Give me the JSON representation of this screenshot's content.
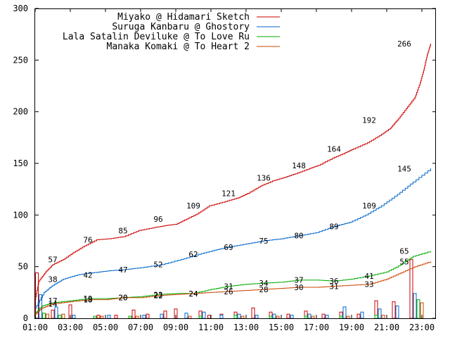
{
  "chart_data": {
    "type": "line",
    "title": "",
    "xlabel": "",
    "ylabel": "",
    "ylim": [
      0,
      300
    ],
    "y_ticks": [
      "0",
      "50",
      "100",
      "150",
      "200",
      "250",
      "300"
    ],
    "x_ticks": [
      "01:00",
      "03:00",
      "05:00",
      "07:00",
      "09:00",
      "11:00",
      "13:00",
      "15:00",
      "17:00",
      "19:00",
      "21:00",
      "23:00"
    ],
    "grid": false,
    "legend_position": "top-right",
    "series": [
      {
        "name": "Miyako @ Hidamari Sketch",
        "color": "#cc0000",
        "points": [
          [
            1.0,
            18
          ],
          [
            1.2,
            36
          ],
          [
            1.6,
            45
          ],
          [
            2.0,
            52
          ],
          [
            2.6,
            57
          ],
          [
            3.2,
            64
          ],
          [
            3.8,
            70
          ],
          [
            4.5,
            76
          ],
          [
            5.2,
            77
          ],
          [
            6.0,
            79
          ],
          [
            6.9,
            85
          ],
          [
            7.8,
            88
          ],
          [
            8.5,
            90
          ],
          [
            9.0,
            91
          ],
          [
            9.6,
            96
          ],
          [
            10.2,
            101
          ],
          [
            10.9,
            109
          ],
          [
            11.8,
            113
          ],
          [
            12.6,
            117
          ],
          [
            13.1,
            121
          ],
          [
            13.8,
            128
          ],
          [
            14.5,
            133
          ],
          [
            15.1,
            136
          ],
          [
            15.8,
            140
          ],
          [
            16.6,
            145
          ],
          [
            17.1,
            148
          ],
          [
            17.9,
            155
          ],
          [
            18.6,
            160
          ],
          [
            19.1,
            164
          ],
          [
            19.9,
            170
          ],
          [
            20.6,
            177
          ],
          [
            21.2,
            184
          ],
          [
            21.6,
            192
          ],
          [
            22.1,
            203
          ],
          [
            22.6,
            214
          ],
          [
            22.9,
            228
          ],
          [
            23.1,
            240
          ],
          [
            23.3,
            255
          ],
          [
            23.5,
            266
          ]
        ],
        "labels": [
          [
            2.0,
            57
          ],
          [
            4.0,
            76
          ],
          [
            6.0,
            85
          ],
          [
            8.0,
            96
          ],
          [
            10.0,
            109
          ],
          [
            12.0,
            121
          ],
          [
            14.0,
            136
          ],
          [
            16.0,
            148
          ],
          [
            18.0,
            164
          ],
          [
            20.0,
            192
          ],
          [
            22.0,
            266
          ]
        ]
      },
      {
        "name": "Suruga Kanbaru @ Ghostory",
        "color": "#0066cc",
        "points": [
          [
            1.0,
            10
          ],
          [
            1.5,
            25
          ],
          [
            2.0,
            32
          ],
          [
            2.6,
            38
          ],
          [
            3.4,
            42
          ],
          [
            4.2,
            44
          ],
          [
            5.2,
            46
          ],
          [
            6.0,
            47
          ],
          [
            7.0,
            49
          ],
          [
            8.2,
            52
          ],
          [
            9.3,
            57
          ],
          [
            10.3,
            62
          ],
          [
            11.2,
            66
          ],
          [
            12.0,
            69
          ],
          [
            13.0,
            72
          ],
          [
            14.0,
            75
          ],
          [
            15.0,
            77
          ],
          [
            16.0,
            80
          ],
          [
            17.0,
            83
          ],
          [
            18.0,
            89
          ],
          [
            18.9,
            93
          ],
          [
            19.8,
            100
          ],
          [
            20.7,
            109
          ],
          [
            21.6,
            120
          ],
          [
            22.5,
            132
          ],
          [
            23.5,
            145
          ]
        ],
        "labels": [
          [
            2.0,
            38
          ],
          [
            4.0,
            42
          ],
          [
            6.0,
            47
          ],
          [
            8.0,
            52
          ],
          [
            10.0,
            62
          ],
          [
            12.0,
            69
          ],
          [
            14.0,
            75
          ],
          [
            16.0,
            80
          ],
          [
            18.0,
            89
          ],
          [
            20.0,
            109
          ],
          [
            22.0,
            145
          ]
        ]
      },
      {
        "name": "Lala Satalin Deviluke @ To Love Ru",
        "color": "#00aa00",
        "points": [
          [
            1.0,
            5
          ],
          [
            1.4,
            12
          ],
          [
            2.0,
            15
          ],
          [
            3.0,
            17
          ],
          [
            4.0,
            19
          ],
          [
            5.0,
            19
          ],
          [
            6.0,
            20
          ],
          [
            7.0,
            21
          ],
          [
            8.0,
            23
          ],
          [
            9.0,
            24
          ],
          [
            10.0,
            24
          ],
          [
            11.0,
            28
          ],
          [
            12.0,
            31
          ],
          [
            13.0,
            33
          ],
          [
            14.0,
            34
          ],
          [
            15.0,
            35
          ],
          [
            16.0,
            37
          ],
          [
            17.0,
            37
          ],
          [
            18.0,
            36
          ],
          [
            19.0,
            38
          ],
          [
            20.0,
            41
          ],
          [
            21.0,
            45
          ],
          [
            21.8,
            52
          ],
          [
            22.5,
            60
          ],
          [
            23.5,
            65
          ]
        ],
        "labels": [
          [
            2.0,
            17
          ],
          [
            4.0,
            19
          ],
          [
            6.0,
            20
          ],
          [
            8.0,
            23
          ],
          [
            10.0,
            24
          ],
          [
            12.0,
            31
          ],
          [
            14.0,
            34
          ],
          [
            16.0,
            37
          ],
          [
            18.0,
            36
          ],
          [
            20.0,
            41
          ],
          [
            22.0,
            65
          ]
        ]
      },
      {
        "name": "Manaka Komaki @ To Heart 2",
        "color": "#cc4400",
        "points": [
          [
            1.0,
            4
          ],
          [
            1.4,
            10
          ],
          [
            2.0,
            14
          ],
          [
            3.0,
            16
          ],
          [
            4.0,
            18
          ],
          [
            5.0,
            18
          ],
          [
            6.0,
            20
          ],
          [
            7.0,
            20
          ],
          [
            8.0,
            22
          ],
          [
            9.0,
            23
          ],
          [
            10.0,
            24
          ],
          [
            11.0,
            25
          ],
          [
            12.0,
            26
          ],
          [
            13.0,
            27
          ],
          [
            14.0,
            28
          ],
          [
            15.0,
            29
          ],
          [
            16.0,
            30
          ],
          [
            17.0,
            30
          ],
          [
            18.0,
            31
          ],
          [
            19.0,
            32
          ],
          [
            20.0,
            33
          ],
          [
            21.0,
            38
          ],
          [
            21.8,
            44
          ],
          [
            22.6,
            50
          ],
          [
            23.5,
            55
          ]
        ],
        "labels": [
          [
            2.0,
            14
          ],
          [
            4.0,
            18
          ],
          [
            6.0,
            20
          ],
          [
            8.0,
            22
          ],
          [
            10.0,
            24
          ],
          [
            12.0,
            26
          ],
          [
            14.0,
            28
          ],
          [
            16.0,
            30
          ],
          [
            18.0,
            31
          ],
          [
            20.0,
            33
          ],
          [
            22.0,
            55
          ]
        ]
      }
    ],
    "bar_series": [
      {
        "name": "Miyako @ Hidamari Sketch",
        "color": "#cc0000",
        "bars": [
          [
            1.1,
            44
          ],
          [
            2.0,
            8
          ],
          [
            3.0,
            13
          ],
          [
            4.6,
            3
          ],
          [
            5.6,
            3
          ],
          [
            6.6,
            8
          ],
          [
            7.4,
            4
          ],
          [
            8.4,
            7
          ],
          [
            9.0,
            9
          ],
          [
            10.4,
            7
          ],
          [
            10.9,
            3
          ],
          [
            11.6,
            4
          ],
          [
            12.4,
            6
          ],
          [
            13.4,
            10
          ],
          [
            14.4,
            6
          ],
          [
            15.4,
            4
          ],
          [
            16.4,
            7
          ],
          [
            17.4,
            4
          ],
          [
            18.4,
            6
          ],
          [
            19.4,
            4
          ],
          [
            20.4,
            17
          ],
          [
            21.4,
            16
          ],
          [
            22.4,
            57
          ]
        ]
      },
      {
        "name": "Suruga Kanbaru @ Ghostory",
        "color": "#0066cc",
        "bars": [
          [
            1.3,
            23
          ],
          [
            2.2,
            11
          ],
          [
            3.2,
            3
          ],
          [
            5.2,
            3
          ],
          [
            7.2,
            3
          ],
          [
            8.2,
            4
          ],
          [
            9.6,
            5
          ],
          [
            10.6,
            6
          ],
          [
            11.6,
            3
          ],
          [
            12.6,
            4
          ],
          [
            13.6,
            3
          ],
          [
            14.6,
            4
          ],
          [
            15.6,
            3
          ],
          [
            16.6,
            4
          ],
          [
            17.6,
            3
          ],
          [
            18.6,
            11
          ],
          [
            19.6,
            6
          ],
          [
            20.6,
            9
          ],
          [
            21.6,
            12
          ],
          [
            22.6,
            24
          ]
        ]
      },
      {
        "name": "Lala Satalin Deviluke @ To Love Ru",
        "color": "#00aa00",
        "bars": [
          [
            1.5,
            5
          ],
          [
            2.4,
            3
          ],
          [
            4.4,
            2
          ],
          [
            6.4,
            2
          ],
          [
            10.4,
            2
          ],
          [
            12.4,
            3
          ],
          [
            14.4,
            2
          ],
          [
            16.4,
            2
          ],
          [
            18.4,
            2
          ],
          [
            20.4,
            3
          ],
          [
            22.8,
            18
          ]
        ]
      },
      {
        "name": "Manaka Komaki @ To Heart 2",
        "color": "#cc4400",
        "bars": [
          [
            1.7,
            4
          ],
          [
            2.6,
            4
          ],
          [
            4.8,
            2
          ],
          [
            6.8,
            2
          ],
          [
            9.8,
            2
          ],
          [
            12.8,
            2
          ],
          [
            14.8,
            2
          ],
          [
            16.8,
            2
          ],
          [
            18.8,
            2
          ],
          [
            20.8,
            3
          ],
          [
            23.0,
            15
          ]
        ]
      }
    ]
  }
}
